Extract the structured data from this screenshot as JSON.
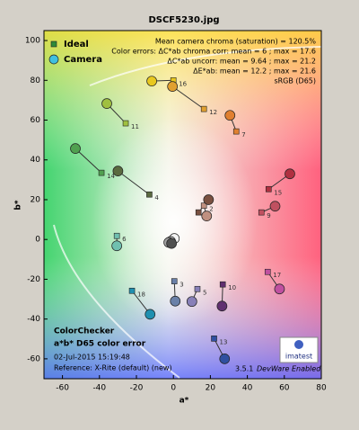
{
  "chart_data": {
    "type": "scatter",
    "title": "DSCF5230.jpg",
    "x_label": "a*",
    "y_label": "b*",
    "xlim": [
      -70,
      80
    ],
    "ylim": [
      -70,
      105
    ],
    "xticks": [
      -60,
      -40,
      -20,
      0,
      20,
      40,
      60,
      80
    ],
    "yticks": [
      -60,
      -40,
      -20,
      0,
      20,
      40,
      60,
      80,
      100
    ],
    "patches": [
      "1",
      "2",
      "3",
      "4",
      "5",
      "6",
      "7",
      "9",
      "10",
      "11",
      "12",
      "13",
      "14",
      "15",
      "16",
      "17",
      "18",
      null,
      null,
      null,
      null
    ],
    "point_colors": [
      "#7a5040",
      "#c09080",
      "#6a80a8",
      "#5a6a40",
      "#8880b8",
      "#70c0b0",
      "#e08030",
      "#c05060",
      "#603070",
      "#a0c040",
      "#e0a030",
      "#3050a0",
      "#50a050",
      "#b03040",
      "#e8c820",
      "#c050a0",
      "#2090b0",
      "#f4f4f4",
      "#c8c8c8",
      "#a0a0a0",
      "#505050"
    ],
    "series": [
      {
        "name": "Ideal",
        "color": "#2e8b3a",
        "x": [
          13.6,
          16.5,
          0.5,
          -13,
          13,
          -30.6,
          34,
          47.6,
          26.7,
          -25.8,
          16.5,
          22,
          -38.9,
          51.5,
          0,
          51,
          -22.4,
          0,
          -1,
          -1.5,
          -0.5
        ],
        "y": [
          13.6,
          17,
          -21,
          22.6,
          -24.9,
          1.8,
          54.3,
          13.6,
          -22.6,
          58.4,
          65.6,
          -49.8,
          33.5,
          25.3,
          80,
          -16.3,
          -25.8,
          0,
          -0.5,
          -1,
          -1.5
        ]
      },
      {
        "name": "Camera",
        "color": "#40c0e0",
        "x": [
          19,
          18,
          1,
          -30,
          10,
          -30.6,
          30.6,
          55,
          26.3,
          -36,
          -0.5,
          27.7,
          -53,
          63,
          -11.7,
          57.4,
          -12.6,
          0.5,
          -1.5,
          -2.5,
          -1
        ],
        "y": [
          20,
          11.8,
          -31,
          34.4,
          -31.2,
          -3.2,
          62.4,
          16.7,
          -33.5,
          68.3,
          76.9,
          -60,
          45.7,
          33,
          79.6,
          -24.9,
          -37.6,
          0.5,
          -1,
          -1.5,
          -2
        ]
      }
    ],
    "stats": [
      "Mean camera chroma (saturation) = 120.5%",
      "Color errors: ΔC*ab chroma corr:  mean = 6 ;  max = 17.6",
      "ΔC*ab uncorr:  mean = 9.64 ;  max = 21.2",
      "ΔE*ab:  mean = 12.2 ;  max = 21.6",
      "sRGB (D65)"
    ],
    "info": [
      "ColorChecker",
      "a*b* D65 color error",
      "02-Jul-2015 15:19:48",
      "Reference: X-Rite (default) (new)"
    ],
    "version": "3.5.1",
    "mode": "DevWare Enabled",
    "brand": "imatest",
    "legend": "upper left"
  }
}
